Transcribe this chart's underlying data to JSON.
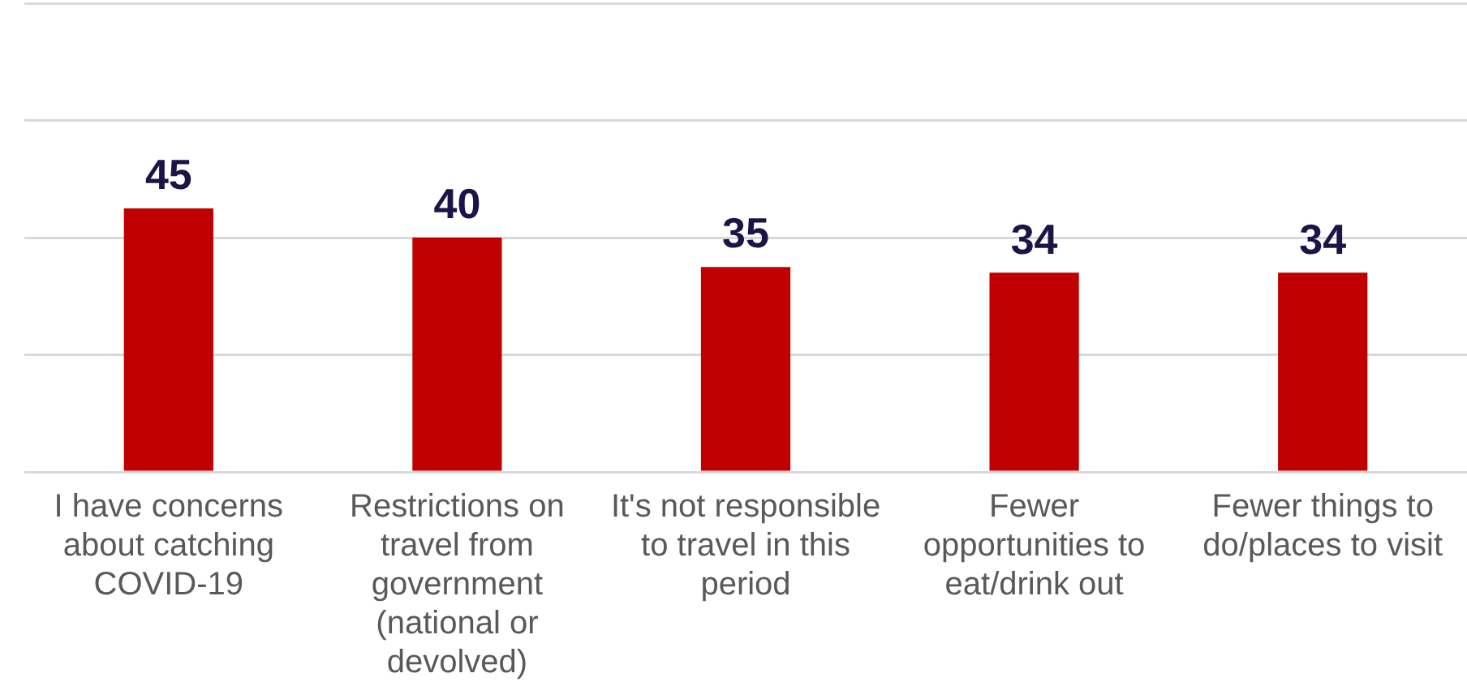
{
  "chart_data": {
    "type": "bar",
    "categories": [
      "I have concerns about catching COVID-19",
      "Restrictions on travel from government (national or devolved)",
      "It's not responsible to travel in this period",
      "Fewer opportunities to eat/drink out",
      "Fewer things to do/places to visit"
    ],
    "values": [
      45,
      40,
      35,
      34,
      34
    ],
    "color": "#c00000",
    "ylim": [
      0,
      80
    ],
    "yticks": [
      {
        "value": 0,
        "label": null
      },
      {
        "value": 20,
        "label": null
      },
      {
        "value": 40,
        "label": null
      },
      {
        "value": 60,
        "label": null
      },
      {
        "value": 80,
        "label": null
      }
    ],
    "grid": "y",
    "tick_labels": "x",
    "data_labels": true,
    "legend": false
  }
}
